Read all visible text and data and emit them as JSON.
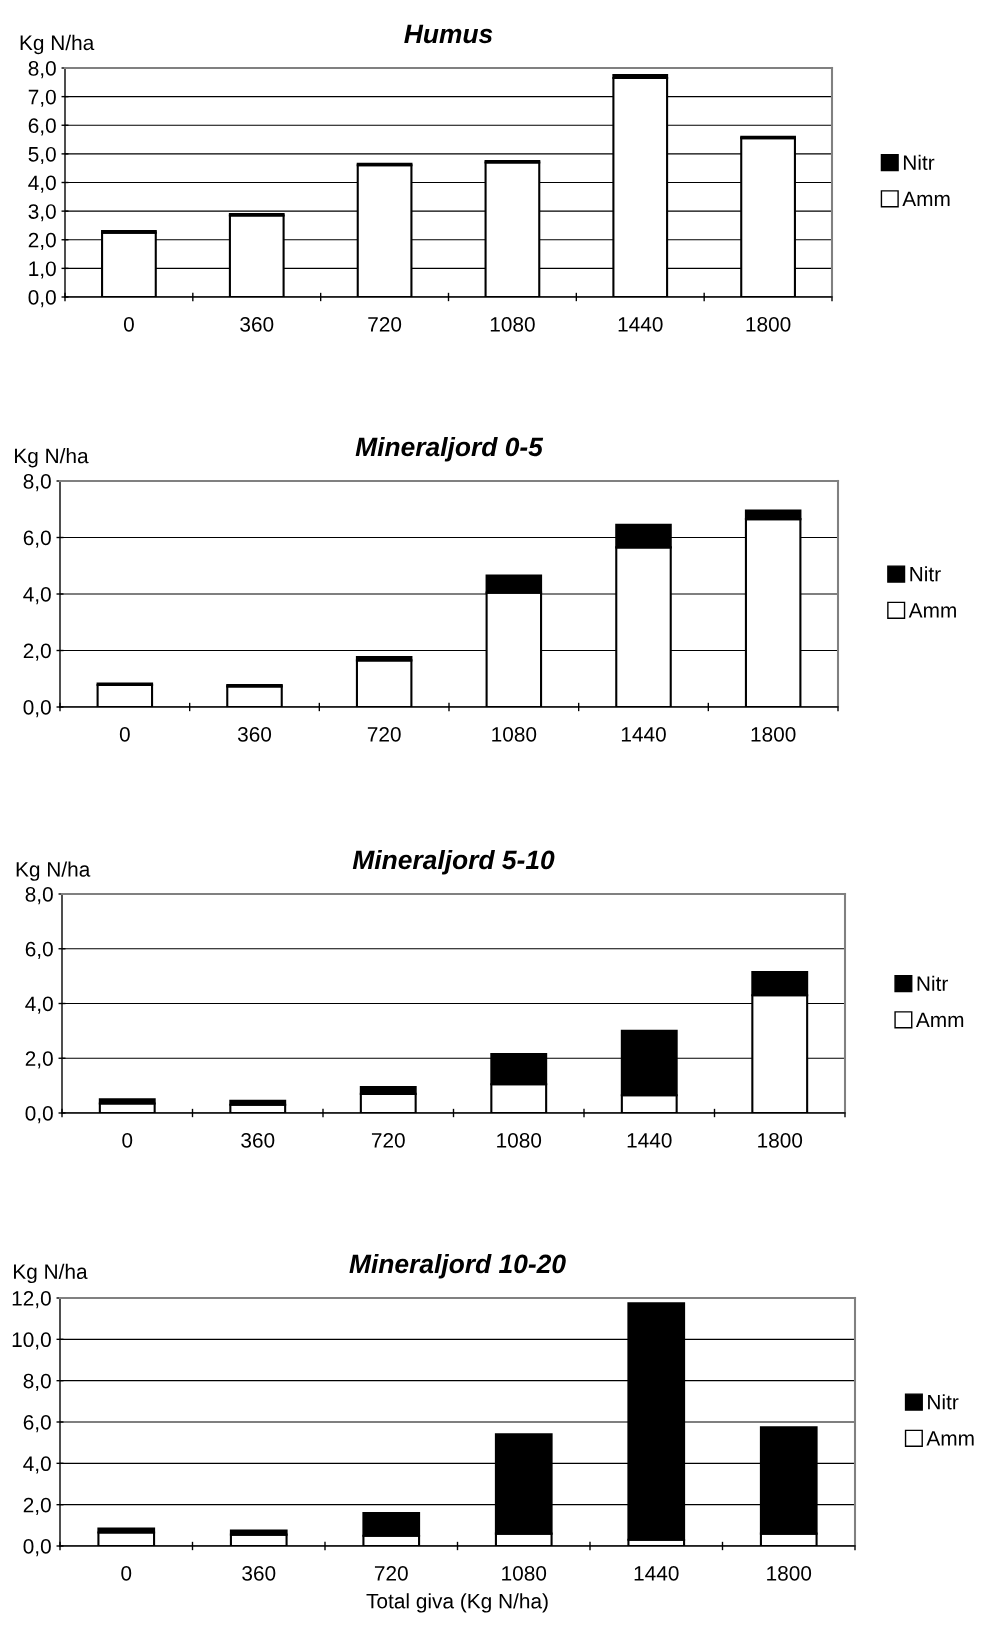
{
  "chart_data": [
    {
      "type": "bar",
      "title": "Humus",
      "ylabel": "Kg N/ha",
      "categories": [
        "0",
        "360",
        "720",
        "1080",
        "1440",
        "1800"
      ],
      "stacked": true,
      "grid": "y",
      "legend": "right",
      "ylim": [
        0,
        8
      ],
      "yticks": [
        {
          "value": 0,
          "label": "0,0"
        },
        {
          "value": 1,
          "label": "1,0"
        },
        {
          "value": 2,
          "label": "2,0"
        },
        {
          "value": 3,
          "label": "3,0"
        },
        {
          "value": 4,
          "label": "4,0"
        },
        {
          "value": 5,
          "label": "5,0"
        },
        {
          "value": 6,
          "label": "6,0"
        },
        {
          "value": 7,
          "label": "7,0"
        },
        {
          "value": 8,
          "label": "8,0"
        }
      ],
      "series": [
        {
          "name": "Amm",
          "color": "#ffffff",
          "values": [
            2.25,
            2.85,
            4.6,
            4.7,
            7.65,
            5.55
          ]
        },
        {
          "name": "Nitr",
          "color": "#000000",
          "values": [
            0.05,
            0.05,
            0.05,
            0.05,
            0.1,
            0.05
          ]
        }
      ]
    },
    {
      "type": "bar",
      "title": "Mineraljord 0-5",
      "ylabel": "Kg N/ha",
      "categories": [
        "0",
        "360",
        "720",
        "1080",
        "1440",
        "1800"
      ],
      "stacked": true,
      "grid": "y",
      "legend": "right",
      "ylim": [
        0,
        8
      ],
      "yticks": [
        {
          "value": 0,
          "label": "0,0"
        },
        {
          "value": 2,
          "label": "2,0"
        },
        {
          "value": 4,
          "label": "4,0"
        },
        {
          "value": 6,
          "label": "6,0"
        },
        {
          "value": 8,
          "label": "8,0"
        }
      ],
      "series": [
        {
          "name": "Amm",
          "color": "#ffffff",
          "values": [
            0.78,
            0.73,
            1.65,
            4.05,
            5.65,
            6.65
          ]
        },
        {
          "name": "Nitr",
          "color": "#000000",
          "values": [
            0.05,
            0.05,
            0.12,
            0.6,
            0.8,
            0.3
          ]
        }
      ]
    },
    {
      "type": "bar",
      "title": "Mineraljord 5-10",
      "ylabel": "Kg N/ha",
      "categories": [
        "0",
        "360",
        "720",
        "1080",
        "1440",
        "1800"
      ],
      "stacked": true,
      "grid": "y",
      "legend": "right",
      "ylim": [
        0,
        8
      ],
      "yticks": [
        {
          "value": 0,
          "label": "0,0"
        },
        {
          "value": 2,
          "label": "2,0"
        },
        {
          "value": 4,
          "label": "4,0"
        },
        {
          "value": 6,
          "label": "6,0"
        },
        {
          "value": 8,
          "label": "8,0"
        }
      ],
      "series": [
        {
          "name": "Amm",
          "color": "#ffffff",
          "values": [
            0.35,
            0.3,
            0.7,
            1.05,
            0.65,
            4.3
          ]
        },
        {
          "name": "Nitr",
          "color": "#000000",
          "values": [
            0.15,
            0.15,
            0.25,
            1.1,
            2.35,
            0.85
          ]
        }
      ]
    },
    {
      "type": "bar",
      "title": "Mineraljord 10-20",
      "ylabel": "Kg N/ha",
      "xlabel": "Total giva (Kg N/ha)",
      "categories": [
        "0",
        "360",
        "720",
        "1080",
        "1440",
        "1800"
      ],
      "stacked": true,
      "grid": "y",
      "legend": "right",
      "ylim": [
        0,
        12
      ],
      "yticks": [
        {
          "value": 0,
          "label": "0,0"
        },
        {
          "value": 2,
          "label": "2,0"
        },
        {
          "value": 4,
          "label": "4,0"
        },
        {
          "value": 6,
          "label": "6,0"
        },
        {
          "value": 8,
          "label": "8,0"
        },
        {
          "value": 10,
          "label": "10,0"
        },
        {
          "value": 12,
          "label": "12,0"
        }
      ],
      "series": [
        {
          "name": "Amm",
          "color": "#ffffff",
          "values": [
            0.65,
            0.55,
            0.5,
            0.6,
            0.3,
            0.6
          ]
        },
        {
          "name": "Nitr",
          "color": "#000000",
          "values": [
            0.2,
            0.2,
            1.1,
            4.8,
            11.45,
            5.15
          ]
        }
      ]
    }
  ]
}
